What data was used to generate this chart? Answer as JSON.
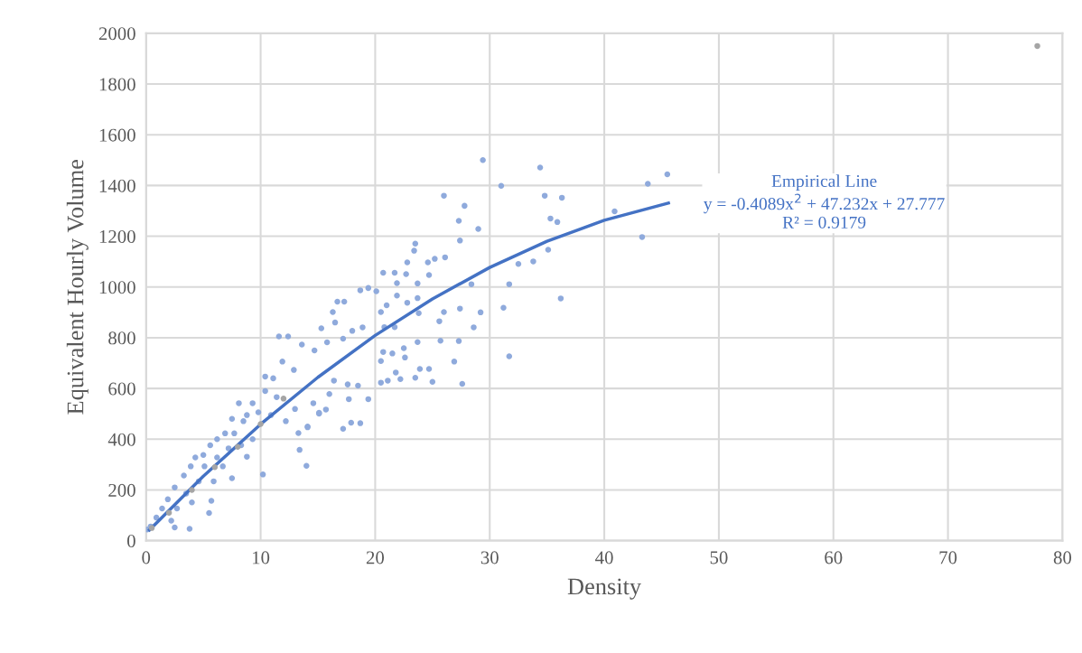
{
  "chart_data": {
    "type": "scatter",
    "xlabel": "Density",
    "ylabel": "Equivalent Hourly Volume",
    "xlim": [
      0,
      80
    ],
    "xticks": [
      0,
      10,
      20,
      30,
      40,
      50,
      60,
      70,
      80
    ],
    "ylim": [
      0,
      2000
    ],
    "yticks": [
      0,
      200,
      400,
      600,
      800,
      1000,
      1200,
      1400,
      1600,
      1800,
      2000
    ],
    "grid": true,
    "marker": "circle",
    "annotations": [
      "Empirical Line\ny = -0.4089x$^{2}$ + 47.232x + 27.777\nR² = 0.9179"
    ],
    "series": [
      {
        "color": "#8faadc",
        "x": [
          29.4,
          34.4,
          45.5,
          43.8,
          31.0,
          26.0,
          34.8,
          36.3,
          27.8,
          35.3,
          35.9,
          27.3,
          40.9,
          43.3,
          29.0,
          27.4,
          23.5,
          23.4,
          35.1,
          33.8,
          32.5,
          26.1,
          25.2,
          24.6,
          22.8,
          20.7,
          21.7,
          22.7,
          24.7,
          31.7,
          28.4,
          23.7,
          21.9,
          36.2,
          31.2,
          29.2,
          27.4,
          26.0,
          25.6,
          28.6,
          23.7,
          22.8,
          23.8,
          21.9,
          21.0,
          20.5,
          18.7,
          19.4,
          20.1,
          16.7,
          17.3,
          16.3,
          16.5,
          15.3,
          18.0,
          18.9,
          20.8,
          21.7,
          11.6,
          12.4,
          13.6,
          15.8,
          17.2,
          23.7,
          25.7,
          27.3,
          26.9,
          24.7,
          23.9,
          21.8,
          22.2,
          23.5,
          25.0,
          27.6,
          31.7,
          20.5,
          21.1,
          22.5,
          22.6,
          20.7,
          21.5,
          20.5,
          19.4,
          18.7,
          17.9,
          17.2,
          17.7,
          18.5,
          17.6,
          16.4,
          16.0,
          14.7,
          14.1,
          13.3,
          15.7,
          15.1,
          11.9,
          10.4,
          11.1,
          12.9,
          15.1,
          14.1,
          14.0,
          13.4,
          10.2,
          8.8,
          7.5,
          5.7,
          5.5,
          3.8,
          2.5,
          8.1,
          7.5,
          6.2,
          5.0,
          3.9,
          2.5,
          1.4,
          0.4,
          9.3,
          8.8,
          10.4,
          11.4,
          13.0,
          14.6,
          12.2,
          7.7,
          9.3,
          7.2,
          6.2,
          5.1,
          4.6,
          3.5,
          2.7,
          3.3,
          4.3,
          5.6,
          6.9,
          8.5,
          9.8,
          10.9,
          8.3,
          6.7,
          5.9,
          4.0,
          1.9,
          0.9,
          2.2,
          0.1
        ],
        "values": [
          1500,
          1471,
          1444,
          1407,
          1399,
          1360,
          1360,
          1352,
          1320,
          1270,
          1256,
          1261,
          1298,
          1197,
          1229,
          1183,
          1171,
          1143,
          1147,
          1101,
          1091,
          1117,
          1111,
          1097,
          1097,
          1056,
          1056,
          1051,
          1047,
          1011,
          1011,
          1014,
          1015,
          955,
          918,
          900,
          915,
          901,
          865,
          841,
          956,
          938,
          897,
          966,
          928,
          901,
          987,
          996,
          983,
          942,
          942,
          901,
          860,
          837,
          827,
          841,
          842,
          842,
          805,
          805,
          773,
          782,
          796,
          783,
          788,
          787,
          706,
          677,
          677,
          663,
          637,
          642,
          626,
          618,
          727,
          623,
          631,
          759,
          722,
          744,
          738,
          708,
          558,
          463,
          465,
          441,
          558,
          611,
          616,
          631,
          578,
          750,
          447,
          424,
          517,
          501,
          706,
          647,
          640,
          673,
          504,
          450,
          295,
          358,
          261,
          331,
          246,
          157,
          109,
          47,
          52,
          542,
          480,
          400,
          338,
          293,
          210,
          127,
          56,
          542,
          495,
          590,
          566,
          519,
          542,
          471,
          423,
          400,
          364,
          328,
          293,
          234,
          186,
          127,
          257,
          328,
          376,
          423,
          471,
          506,
          495,
          376,
          293,
          234,
          151,
          163,
          91,
          79,
          44
        ]
      },
      {
        "color": "#a5a5a5",
        "x": [
          0.5,
          2,
          4,
          6,
          8,
          10,
          12,
          77.8
        ],
        "values": [
          50,
          110,
          200,
          290,
          370,
          460,
          560,
          1950
        ]
      },
      {
        "type": "line",
        "color": "#4472c4",
        "marker": "none",
        "x": [
          0.3,
          5,
          10,
          15,
          20,
          25,
          30,
          35,
          40,
          45.6
        ],
        "values": [
          42,
          254,
          459,
          644,
          809,
          953,
          1077,
          1180,
          1263,
          1331
        ]
      }
    ]
  }
}
